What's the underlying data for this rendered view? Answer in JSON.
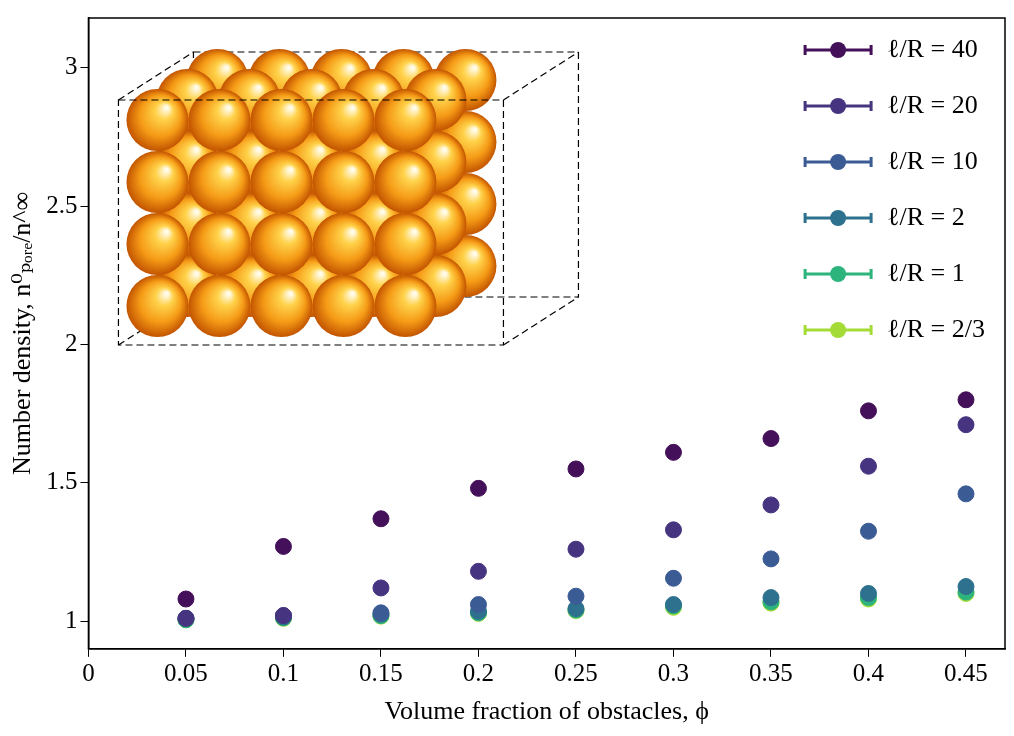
{
  "chart_data": {
    "type": "scatter",
    "x_label": "Volume fraction of obstacles, ϕ",
    "y_label": "Number density, n⁰ₚₒᵣₑ/n^∞",
    "x": [
      0.05,
      0.1,
      0.15,
      0.2,
      0.25,
      0.3,
      0.35,
      0.4,
      0.45
    ],
    "series": [
      {
        "name": "ℓ/R = 40",
        "color": "#45105a",
        "marker": "circle",
        "values": [
          1.08,
          1.27,
          1.37,
          1.48,
          1.55,
          1.61,
          1.66,
          1.76,
          1.8
        ]
      },
      {
        "name": "ℓ/R = 20",
        "color": "#463480",
        "marker": "circle",
        "values": [
          1.01,
          1.02,
          1.12,
          1.18,
          1.26,
          1.33,
          1.42,
          1.56,
          1.71
        ]
      },
      {
        "name": "ℓ/R = 10",
        "color": "#3b5b95",
        "marker": "circle",
        "values": [
          1.01,
          1.02,
          1.03,
          1.06,
          1.09,
          1.155,
          1.225,
          1.325,
          1.46
        ]
      },
      {
        "name": "ℓ/R = 2",
        "color": "#2e718e",
        "marker": "circle",
        "values": [
          1.01,
          1.015,
          1.025,
          1.035,
          1.045,
          1.06,
          1.085,
          1.1,
          1.125
        ]
      },
      {
        "name": "ℓ/R = 1",
        "color": "#2db37c",
        "marker": "circle",
        "values": [
          1.005,
          1.012,
          1.02,
          1.03,
          1.04,
          1.055,
          1.07,
          1.085,
          1.105
        ]
      },
      {
        "name": "ℓ/R = 2/3",
        "color": "#a5db36",
        "marker": "circle",
        "values": [
          1.005,
          1.01,
          1.018,
          1.028,
          1.038,
          1.05,
          1.065,
          1.08,
          1.1
        ]
      }
    ],
    "xlim": [
      0,
      0.47
    ],
    "xticks": [
      0,
      0.05,
      0.1,
      0.15,
      0.2,
      0.25,
      0.3,
      0.35,
      0.4,
      0.45
    ],
    "ylim": [
      0.9,
      3.18
    ],
    "yticks": [
      1,
      1.5,
      2,
      2.5,
      3
    ],
    "grid": false,
    "legend": "upper right"
  }
}
